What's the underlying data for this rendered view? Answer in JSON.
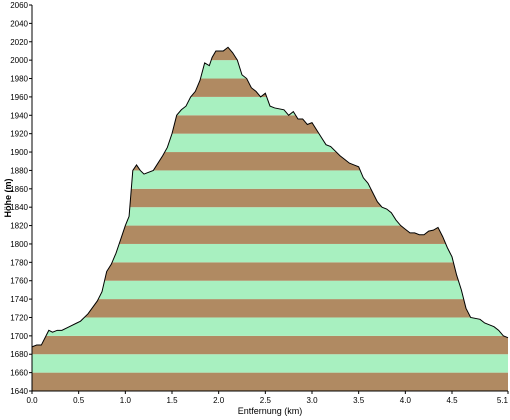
{
  "chart_data": {
    "type": "area",
    "xlabel": "Entfernung  (km)",
    "ylabel": "Höhe (m)",
    "xlim": [
      0,
      5.1
    ],
    "ylim": [
      1640,
      2060
    ],
    "x_ticks": [
      "0.0",
      "0.5",
      "1.0",
      "1.5",
      "2.0",
      "2.5",
      "3.0",
      "3.5",
      "4.0",
      "4.5",
      "5.1"
    ],
    "x_tick_values": [
      0,
      0.5,
      1.0,
      1.5,
      2.0,
      2.5,
      3.0,
      3.5,
      4.0,
      4.5,
      5.1
    ],
    "y_ticks": [
      "1640",
      "1660",
      "1680",
      "1700",
      "1720",
      "1740",
      "1760",
      "1780",
      "1800",
      "1820",
      "1840",
      "1860",
      "1880",
      "1900",
      "1920",
      "1940",
      "1960",
      "1980",
      "2000",
      "2020",
      "2040",
      "2060"
    ],
    "y_tick_values": [
      1640,
      1660,
      1680,
      1700,
      1720,
      1740,
      1760,
      1780,
      1800,
      1820,
      1840,
      1860,
      1880,
      1900,
      1920,
      1940,
      1960,
      1980,
      2000,
      2020,
      2040,
      2060
    ],
    "band_colors": [
      "#b08a62",
      "#a8f0c0"
    ],
    "line_color": "#000000",
    "series": [
      {
        "x": [
          0.0,
          0.05,
          0.1,
          0.15,
          0.18,
          0.22,
          0.27,
          0.32,
          0.4,
          0.48,
          0.52,
          0.6,
          0.7,
          0.75,
          0.8,
          0.85,
          0.9,
          0.95,
          1.0,
          1.04,
          1.08,
          1.12,
          1.16,
          1.2,
          1.3,
          1.4,
          1.45,
          1.5,
          1.55,
          1.6,
          1.65,
          1.7,
          1.75,
          1.8,
          1.85,
          1.9,
          1.93,
          1.97,
          2.0,
          2.05,
          2.1,
          2.15,
          2.2,
          2.25,
          2.3,
          2.35,
          2.4,
          2.45,
          2.5,
          2.55,
          2.6,
          2.7,
          2.75,
          2.8,
          2.85,
          2.9,
          2.95,
          3.0,
          3.05,
          3.1,
          3.15,
          3.2,
          3.3,
          3.35,
          3.4,
          3.45,
          3.5,
          3.55,
          3.6,
          3.65,
          3.7,
          3.75,
          3.8,
          3.85,
          3.9,
          3.95,
          4.0,
          4.05,
          4.1,
          4.15,
          4.2,
          4.25,
          4.3,
          4.35,
          4.4,
          4.45,
          4.5,
          4.55,
          4.6,
          4.65,
          4.7,
          4.8,
          4.85,
          4.9,
          4.95,
          5.0,
          5.05,
          5.1
        ],
        "y": [
          1688,
          1690,
          1690,
          1700,
          1706,
          1704,
          1706,
          1706,
          1710,
          1714,
          1716,
          1724,
          1738,
          1748,
          1770,
          1778,
          1790,
          1805,
          1820,
          1830,
          1880,
          1886,
          1880,
          1876,
          1880,
          1896,
          1905,
          1920,
          1940,
          1946,
          1950,
          1960,
          1966,
          1978,
          1997,
          1994,
          2003,
          2010,
          2010,
          2010,
          2014,
          2008,
          2000,
          1984,
          1980,
          1970,
          1966,
          1960,
          1964,
          1950,
          1948,
          1946,
          1940,
          1944,
          1936,
          1936,
          1930,
          1932,
          1924,
          1916,
          1908,
          1906,
          1896,
          1892,
          1888,
          1886,
          1884,
          1872,
          1866,
          1856,
          1846,
          1840,
          1838,
          1834,
          1826,
          1820,
          1816,
          1812,
          1812,
          1810,
          1810,
          1814,
          1815,
          1818,
          1808,
          1796,
          1786,
          1766,
          1750,
          1730,
          1720,
          1718,
          1714,
          1712,
          1710,
          1706,
          1700,
          1698
        ]
      }
    ]
  }
}
